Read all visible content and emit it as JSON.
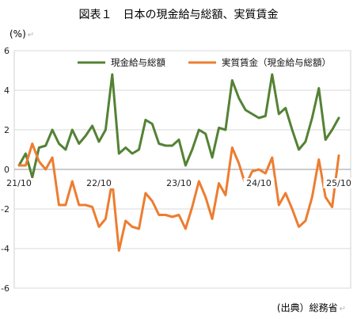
{
  "title": "図表１　日本の現金給与総額、実質賃金",
  "unit": "(%)",
  "source": "(出典）総務省",
  "chart_data": {
    "type": "line",
    "ylim": [
      -6,
      6
    ],
    "yticks": [
      "6",
      "4",
      "2",
      "0",
      "-2",
      "-4",
      "-6"
    ],
    "ytick_values": [
      6,
      4,
      2,
      0,
      -2,
      -4,
      -6
    ],
    "xtick_labels": [
      "21/10",
      "22/10",
      "23/10",
      "24/10",
      "25/10"
    ],
    "xtick_indices": [
      0,
      12,
      24,
      36,
      48
    ],
    "grid": "horizontal",
    "legend_position": "top",
    "series": [
      {
        "name": "現金給与総額",
        "color": "#548235",
        "values": [
          0.2,
          0.8,
          -0.4,
          1.1,
          1.2,
          2.0,
          1.3,
          1.0,
          2.0,
          1.3,
          1.7,
          2.2,
          1.4,
          2.0,
          4.8,
          0.8,
          1.1,
          0.8,
          1.0,
          2.5,
          2.3,
          1.3,
          1.2,
          1.2,
          1.5,
          0.2,
          1.0,
          2.0,
          1.8,
          0.6,
          2.1,
          2.0,
          4.5,
          3.6,
          3.0,
          2.8,
          2.6,
          2.7,
          4.8,
          2.8,
          3.1,
          2.0,
          1.0,
          1.4,
          2.6,
          4.1,
          1.5,
          2.0,
          2.6
        ]
      },
      {
        "name": "実質賃金（現金給与総額）",
        "color": "#ed7d31",
        "values": [
          0.2,
          0.2,
          1.3,
          0.4,
          0.0,
          0.6,
          -1.8,
          -1.8,
          -0.6,
          -1.8,
          -1.8,
          -1.9,
          -2.9,
          -2.5,
          -0.6,
          -4.1,
          -2.6,
          -2.9,
          -3.0,
          -1.2,
          -1.6,
          -2.3,
          -2.3,
          -2.4,
          -2.3,
          -3.0,
          -1.9,
          -0.6,
          -1.4,
          -2.5,
          -0.7,
          -1.3,
          1.1,
          0.3,
          -0.8,
          -0.1,
          0.0,
          -0.2,
          0.6,
          -1.8,
          -1.2,
          -2.0,
          -2.9,
          -2.6,
          -1.4,
          0.5,
          -1.4,
          -1.9,
          0.7
        ]
      }
    ]
  }
}
